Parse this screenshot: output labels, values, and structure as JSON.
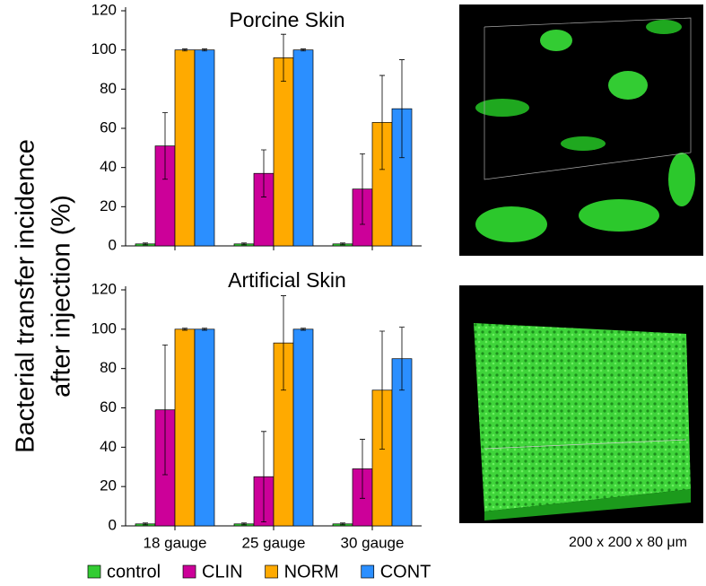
{
  "ylabel": [
    "Bacterial transfer incidence",
    "after injection (%)"
  ],
  "image_caption": "200 x 200 x 80 μm",
  "chart_data": [
    {
      "type": "bar",
      "title": "Porcine Skin",
      "categories": [
        null,
        null,
        null
      ],
      "ylim": [
        0,
        120
      ],
      "yticks": [
        0,
        20,
        40,
        60,
        80,
        100,
        120
      ],
      "series": [
        {
          "name": "control",
          "color": "#33cc33",
          "values": [
            1,
            1,
            1
          ],
          "errors": [
            0.5,
            0.5,
            0.5
          ]
        },
        {
          "name": "CLIN",
          "color": "#cc0099",
          "values": [
            51,
            37,
            29
          ],
          "errors": [
            17,
            12,
            18
          ]
        },
        {
          "name": "NORM",
          "color": "#ffaa00",
          "values": [
            100,
            96,
            63
          ],
          "errors": [
            0.5,
            12,
            24
          ]
        },
        {
          "name": "CONT",
          "color": "#2b8fff",
          "values": [
            100,
            100,
            70
          ],
          "errors": [
            0.5,
            0.5,
            25
          ]
        }
      ]
    },
    {
      "type": "bar",
      "title": "Artificial Skin",
      "categories": [
        "18 gauge",
        "25 gauge",
        "30 gauge"
      ],
      "ylim": [
        0,
        120
      ],
      "yticks": [
        0,
        20,
        40,
        60,
        80,
        100,
        120
      ],
      "series": [
        {
          "color": "#33cc33",
          "values": [
            1,
            1,
            1
          ],
          "errors": [
            0.5,
            0.5,
            0.5
          ]
        },
        {
          "color": "#cc0099",
          "values": [
            59,
            25,
            29
          ],
          "errors": [
            33,
            23,
            15
          ]
        },
        {
          "color": "#ffaa00",
          "values": [
            100,
            93,
            69
          ],
          "errors": [
            0.5,
            24,
            30
          ]
        },
        {
          "color": "#2b8fff",
          "values": [
            100,
            100,
            85
          ],
          "errors": [
            0.5,
            0.5,
            16
          ]
        }
      ]
    }
  ]
}
